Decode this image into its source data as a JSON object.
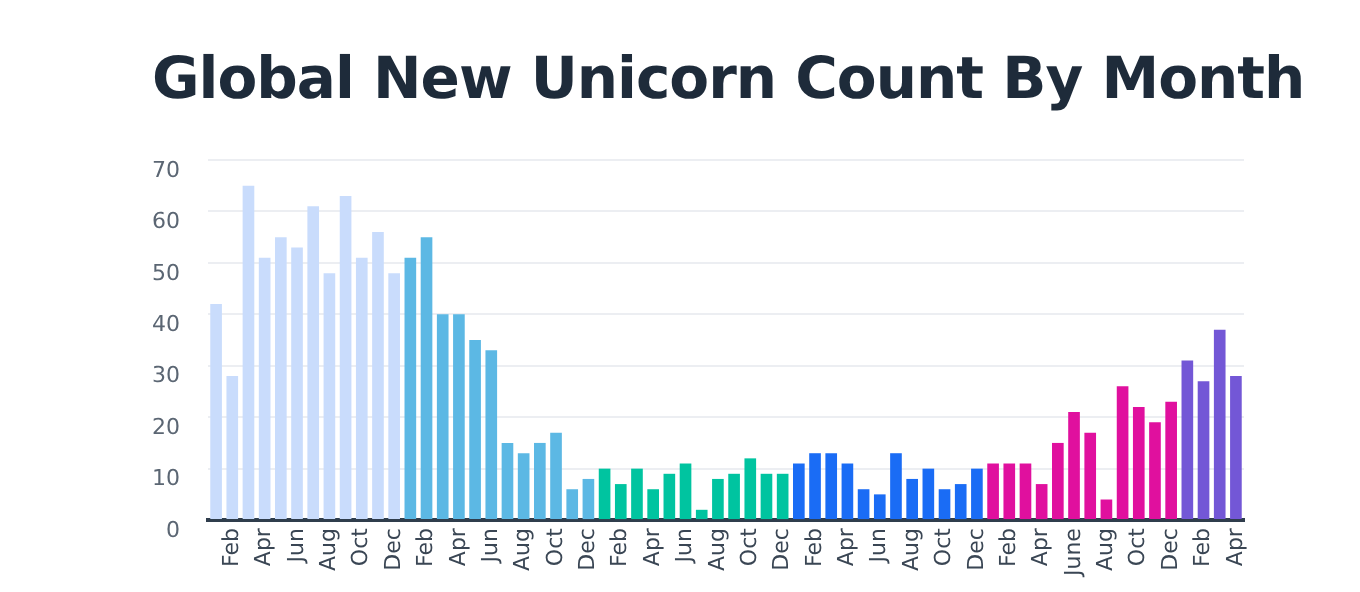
{
  "chart_data": {
    "type": "bar",
    "title": "Global New Unicorn Count By Month",
    "categories": [
      null,
      "Feb",
      null,
      "Apr",
      null,
      "Jun",
      null,
      "Aug",
      null,
      "Oct",
      null,
      "Dec",
      null,
      "Feb",
      null,
      "Apr",
      null,
      "Jun",
      null,
      "Aug",
      null,
      "Oct",
      null,
      "Dec",
      null,
      "Feb",
      null,
      "Apr",
      null,
      "Jun",
      null,
      "Aug",
      null,
      "Oct",
      null,
      "Dec",
      null,
      "Feb",
      null,
      "Apr",
      null,
      "Jun",
      null,
      "Aug",
      null,
      "Oct",
      null,
      "Dec",
      null,
      "Feb",
      null,
      "Apr",
      null,
      "June",
      null,
      "Aug",
      null,
      "Oct",
      null,
      "Dec",
      null,
      "Feb",
      null,
      "Apr"
    ],
    "values": [
      42,
      28,
      65,
      51,
      55,
      53,
      61,
      48,
      63,
      51,
      56,
      48,
      51,
      55,
      40,
      40,
      35,
      33,
      15,
      13,
      15,
      17,
      6,
      8,
      10,
      7,
      10,
      6,
      9,
      11,
      2,
      8,
      9,
      12,
      9,
      9,
      11,
      13,
      13,
      11,
      6,
      5,
      13,
      8,
      10,
      6,
      7,
      10,
      11,
      11,
      11,
      7,
      15,
      21,
      17,
      4,
      26,
      22,
      19,
      23,
      31,
      27,
      37,
      28
    ],
    "colors": [
      "#c9dcfc",
      "#c9dcfc",
      "#c9dcfc",
      "#c9dcfc",
      "#c9dcfc",
      "#c9dcfc",
      "#c9dcfc",
      "#c9dcfc",
      "#c9dcfc",
      "#c9dcfc",
      "#c9dcfc",
      "#c9dcfc",
      "#5cb8e4",
      "#5cb8e4",
      "#5cb8e4",
      "#5cb8e4",
      "#5cb8e4",
      "#5cb8e4",
      "#5cb8e4",
      "#5cb8e4",
      "#5cb8e4",
      "#5cb8e4",
      "#5cb8e4",
      "#5cb8e4",
      "#00c4a0",
      "#00c4a0",
      "#00c4a0",
      "#00c4a0",
      "#00c4a0",
      "#00c4a0",
      "#00c4a0",
      "#00c4a0",
      "#00c4a0",
      "#00c4a0",
      "#00c4a0",
      "#00c4a0",
      "#1a6cf5",
      "#1a6cf5",
      "#1a6cf5",
      "#1a6cf5",
      "#1a6cf5",
      "#1a6cf5",
      "#1a6cf5",
      "#1a6cf5",
      "#1a6cf5",
      "#1a6cf5",
      "#1a6cf5",
      "#1a6cf5",
      "#e0109e",
      "#e0109e",
      "#e0109e",
      "#e0109e",
      "#e0109e",
      "#e0109e",
      "#e0109e",
      "#e0109e",
      "#e0109e",
      "#e0109e",
      "#e0109e",
      "#e0109e",
      "#7357d6",
      "#7357d6",
      "#7357d6",
      "#7357d6"
    ],
    "ylim": [
      0,
      70
    ],
    "yticks": [
      0,
      10,
      20,
      30,
      40,
      50,
      60,
      70
    ],
    "grid": "y"
  }
}
